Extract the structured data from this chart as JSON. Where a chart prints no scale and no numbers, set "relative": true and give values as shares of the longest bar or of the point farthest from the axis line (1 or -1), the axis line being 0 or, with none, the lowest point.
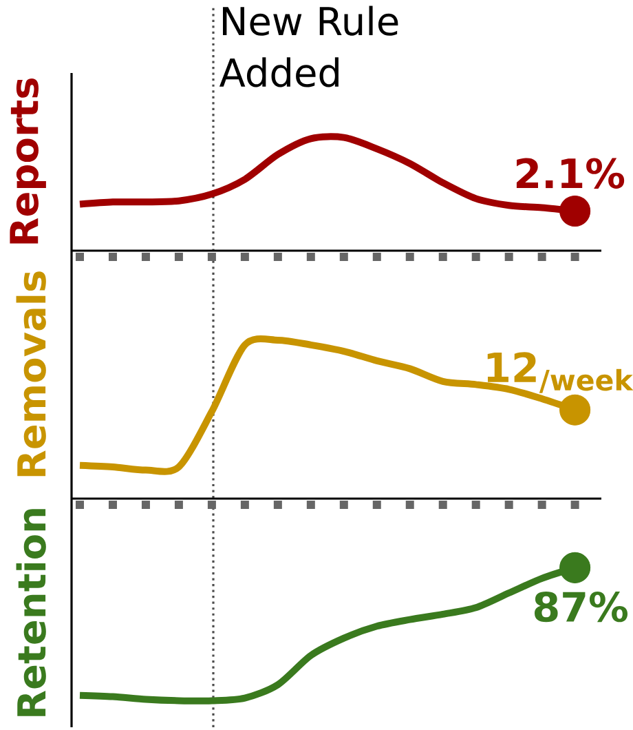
{
  "chart_data": [
    {
      "type": "line",
      "relative": true,
      "ylabel": "Reports",
      "categories": [
        null,
        null,
        null,
        null,
        null,
        null,
        null,
        null,
        null,
        null,
        null,
        null,
        null,
        null,
        null,
        null
      ],
      "series": [
        {
          "color": "#a00000",
          "values": [
            0.41,
            0.43,
            0.43,
            0.44,
            0.5,
            0.63,
            0.85,
            0.99,
            1,
            0.9,
            0.77,
            0.6,
            0.46,
            0.4,
            0.38,
            0.35
          ]
        }
      ],
      "annotations": [
        "2.1%",
        "New Rule Added"
      ]
    },
    {
      "type": "line",
      "relative": true,
      "ylabel": "Removals",
      "categories": [
        null,
        null,
        null,
        null,
        null,
        null,
        null,
        null,
        null,
        null,
        null,
        null,
        null,
        null,
        null,
        null
      ],
      "series": [
        {
          "color": "#c89400",
          "values": [
            0.21,
            0.2,
            0.18,
            0.2,
            0.55,
            0.97,
            1,
            0.97,
            0.93,
            0.87,
            0.82,
            0.74,
            0.72,
            0.69,
            0.63,
            0.56
          ]
        }
      ],
      "annotations": [
        "12$_{/week}$"
      ]
    },
    {
      "type": "line",
      "relative": true,
      "ylabel": "Retention",
      "categories": [
        null,
        null,
        null,
        null,
        null,
        null,
        null,
        null,
        null,
        null,
        null,
        null,
        null,
        null,
        null,
        null
      ],
      "series": [
        {
          "color": "#3a7a1e",
          "values": [
            0.04,
            0.03,
            0.01,
            0,
            0,
            0.02,
            0.12,
            0.34,
            0.47,
            0.56,
            0.61,
            0.65,
            0.7,
            0.81,
            0.92,
            1
          ]
        }
      ],
      "annotations": [
        "87%"
      ]
    }
  ]
}
